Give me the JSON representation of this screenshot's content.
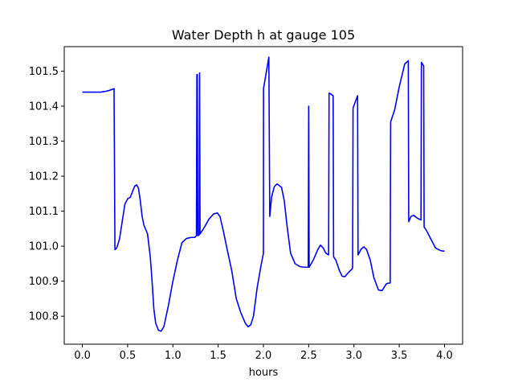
{
  "chart_data": {
    "type": "line",
    "title": "Water Depth h at gauge 105",
    "xlabel": "hours",
    "ylabel": "",
    "xlim": [
      -0.2,
      4.2
    ],
    "ylim": [
      100.72,
      101.57
    ],
    "x_ticks": [
      0.0,
      0.5,
      1.0,
      1.5,
      2.0,
      2.5,
      3.0,
      3.5,
      4.0
    ],
    "x_tick_labels": [
      "0.0",
      "0.5",
      "1.0",
      "1.5",
      "2.0",
      "2.5",
      "3.0",
      "3.5",
      "4.0"
    ],
    "y_ticks": [
      100.8,
      100.9,
      101.0,
      101.1,
      101.2,
      101.3,
      101.4,
      101.5
    ],
    "y_tick_labels": [
      "100.8",
      "100.9",
      "101.0",
      "101.1",
      "101.2",
      "101.3",
      "101.4",
      "101.5"
    ],
    "grid": false,
    "series": [
      {
        "color": "#0000ff",
        "x": [
          0.0,
          0.1,
          0.2,
          0.25,
          0.3,
          0.35,
          0.36,
          0.38,
          0.41,
          0.44,
          0.47,
          0.5,
          0.53,
          0.56,
          0.58,
          0.6,
          0.62,
          0.64,
          0.66,
          0.68,
          0.72,
          0.75,
          0.77,
          0.79,
          0.81,
          0.84,
          0.87,
          0.9,
          0.95,
          1.0,
          1.05,
          1.1,
          1.15,
          1.2,
          1.24,
          1.26,
          1.265,
          1.27,
          1.275,
          1.29,
          1.295,
          1.3,
          1.35,
          1.4,
          1.45,
          1.49,
          1.52,
          1.56,
          1.6,
          1.65,
          1.7,
          1.75,
          1.8,
          1.83,
          1.86,
          1.89,
          1.93,
          1.97,
          2.0,
          2.001,
          2.06,
          2.07,
          2.09,
          2.12,
          2.15,
          2.18,
          2.2,
          2.23,
          2.26,
          2.3,
          2.35,
          2.4,
          2.44,
          2.47,
          2.495,
          2.5,
          2.505,
          2.55,
          2.6,
          2.63,
          2.66,
          2.69,
          2.72,
          2.725,
          2.73,
          2.77,
          2.775,
          2.8,
          2.84,
          2.87,
          2.9,
          2.94,
          2.98,
          2.985,
          2.99,
          3.04,
          3.045,
          3.08,
          3.11,
          3.14,
          3.18,
          3.22,
          3.27,
          3.31,
          3.36,
          3.4,
          3.405,
          3.45,
          3.5,
          3.56,
          3.6,
          3.605,
          3.63,
          3.66,
          3.7,
          3.74,
          3.745,
          3.77,
          3.775,
          3.8,
          3.85,
          3.9,
          3.95,
          3.98,
          4.0
        ],
        "y": [
          101.44,
          101.44,
          101.44,
          101.442,
          101.445,
          101.45,
          100.99,
          100.995,
          101.02,
          101.07,
          101.12,
          101.135,
          101.14,
          101.16,
          101.172,
          101.175,
          101.165,
          101.13,
          101.085,
          101.06,
          101.035,
          100.97,
          100.9,
          100.82,
          100.78,
          100.76,
          100.757,
          100.77,
          100.83,
          100.9,
          100.96,
          101.01,
          101.022,
          101.025,
          101.025,
          101.03,
          101.49,
          101.49,
          101.03,
          101.032,
          101.495,
          101.035,
          101.055,
          101.078,
          101.092,
          101.095,
          101.085,
          101.04,
          100.99,
          100.93,
          100.85,
          100.81,
          100.78,
          100.77,
          100.775,
          100.8,
          100.88,
          100.94,
          100.98,
          101.45,
          101.54,
          101.085,
          101.14,
          101.17,
          101.178,
          101.172,
          101.168,
          101.13,
          101.06,
          100.98,
          100.95,
          100.942,
          100.94,
          100.94,
          100.94,
          101.4,
          100.94,
          100.96,
          100.99,
          101.003,
          100.995,
          100.98,
          100.975,
          101.437,
          101.437,
          101.43,
          100.97,
          100.96,
          100.93,
          100.914,
          100.913,
          100.925,
          100.935,
          100.94,
          101.395,
          101.43,
          100.975,
          100.992,
          100.998,
          100.99,
          100.96,
          100.91,
          100.875,
          100.873,
          100.893,
          100.895,
          101.355,
          101.39,
          101.455,
          101.52,
          101.53,
          101.07,
          101.085,
          101.088,
          101.08,
          101.075,
          101.525,
          101.515,
          101.055,
          101.045,
          101.02,
          100.995,
          100.988,
          100.986,
          100.986
        ]
      }
    ]
  }
}
